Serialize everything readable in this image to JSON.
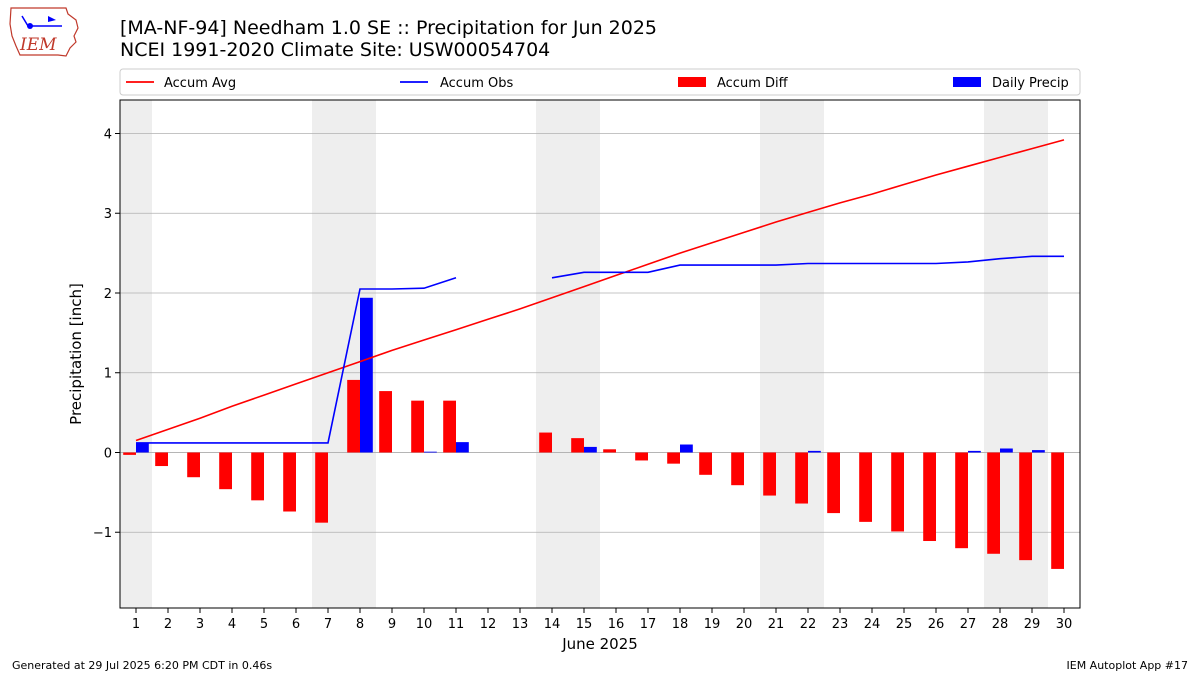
{
  "logo_text": "IEM",
  "title": "[MA-NF-94] Needham 1.0 SE :: Precipitation for Jun 2025",
  "subtitle": "NCEI 1991-2020 Climate Site: USW00054704",
  "footer_left": "Generated at 29 Jul 2025 6:20 PM CDT in 0.46s",
  "footer_right": "IEM Autoplot App #17",
  "colors": {
    "accum_avg": "#ff0000",
    "accum_obs": "#0000ff",
    "accum_diff": "#ff0000",
    "daily_precip": "#0000ff",
    "weekend": "#eeeeee",
    "grid": "#b0b0b0"
  },
  "chart_data": {
    "type": "bar",
    "xlabel": "June 2025",
    "ylabel": "Precipitation [inch]",
    "xlim": [
      0.5,
      30.5
    ],
    "ylim": [
      -1.95,
      4.42
    ],
    "yticks": [
      -1,
      0,
      1,
      2,
      3,
      4
    ],
    "ytick_labels": [
      "−1",
      "0",
      "1",
      "2",
      "3",
      "4"
    ],
    "grid": true,
    "legend": {
      "placement": "top",
      "entries": [
        "Accum Avg",
        "Accum Obs",
        "Accum Diff",
        "Daily Precip"
      ]
    },
    "x": [
      1,
      2,
      3,
      4,
      5,
      6,
      7,
      8,
      9,
      10,
      11,
      12,
      13,
      14,
      15,
      16,
      17,
      18,
      19,
      20,
      21,
      22,
      23,
      24,
      25,
      26,
      27,
      28,
      29,
      30
    ],
    "weekend_shading": [
      [
        0.5,
        1.5
      ],
      [
        6.5,
        8.5
      ],
      [
        13.5,
        15.5
      ],
      [
        20.5,
        22.5
      ],
      [
        27.5,
        29.5
      ]
    ],
    "series": [
      {
        "name": "Accum Avg",
        "type": "line",
        "values": [
          0.15,
          0.29,
          0.43,
          0.58,
          0.72,
          0.86,
          1.0,
          1.14,
          1.28,
          1.41,
          1.54,
          1.67,
          1.8,
          1.94,
          2.08,
          2.22,
          2.36,
          2.5,
          2.63,
          2.76,
          2.89,
          3.01,
          3.13,
          3.24,
          3.36,
          3.48,
          3.59,
          3.7,
          3.81,
          3.92
        ]
      },
      {
        "name": "Accum Obs",
        "type": "line",
        "values": [
          0.12,
          0.12,
          0.12,
          0.12,
          0.12,
          0.12,
          0.12,
          2.05,
          2.05,
          2.06,
          2.19,
          null,
          null,
          2.19,
          2.26,
          2.26,
          2.26,
          2.35,
          2.35,
          2.35,
          2.35,
          2.37,
          2.37,
          2.37,
          2.37,
          2.37,
          2.39,
          2.43,
          2.46,
          2.46
        ]
      },
      {
        "name": "Accum Diff",
        "type": "bar",
        "values": [
          -0.03,
          -0.17,
          -0.31,
          -0.46,
          -0.6,
          -0.74,
          -0.88,
          0.91,
          0.77,
          0.65,
          0.65,
          null,
          null,
          0.25,
          0.18,
          0.04,
          -0.1,
          -0.14,
          -0.28,
          -0.41,
          -0.54,
          -0.64,
          -0.76,
          -0.87,
          -0.99,
          -1.11,
          -1.2,
          -1.27,
          -1.35,
          -1.46
        ]
      },
      {
        "name": "Daily Precip",
        "type": "bar",
        "values": [
          0.12,
          0,
          0,
          0,
          0,
          0,
          0,
          1.94,
          0,
          0.01,
          0.13,
          null,
          null,
          0,
          0.07,
          0,
          0,
          0.1,
          0,
          0,
          0,
          0.02,
          0,
          0,
          0,
          0,
          0.02,
          0.05,
          0.03,
          0
        ]
      }
    ]
  }
}
